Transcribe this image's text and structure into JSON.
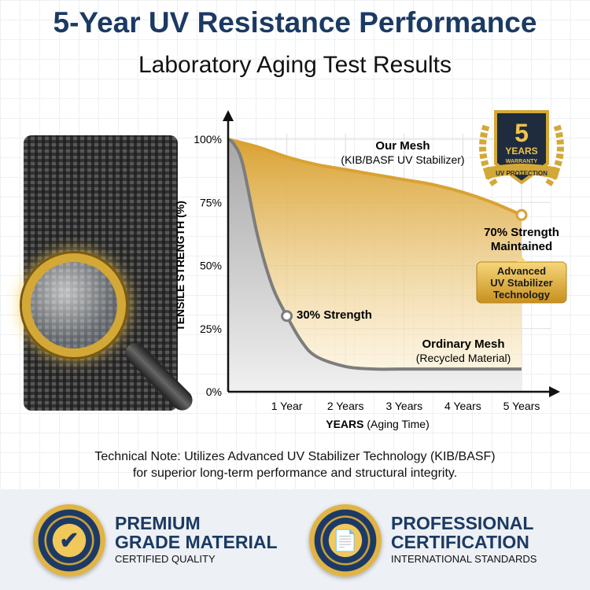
{
  "header": {
    "title": "5-Year UV Resistance Performance",
    "subtitle": "Laboratory Aging Test Results"
  },
  "warranty_badge": {
    "number": "5",
    "line1": "YEARS",
    "line2": "WARRANTY",
    "ribbon": "UV PROTECTION"
  },
  "chart_data": {
    "type": "line",
    "ylabel": "TENSILE STRENGTH (%)",
    "xlabel_bold": "YEARS",
    "xlabel_rest": "(Aging Time)",
    "x_ticks": [
      "1 Year",
      "2 Years",
      "3 Years",
      "4 Years",
      "5 Years"
    ],
    "y_ticks": [
      "0%",
      "25%",
      "50%",
      "75%",
      "100%"
    ],
    "xlim": [
      0,
      5.6
    ],
    "ylim": [
      0,
      100
    ],
    "grid": true,
    "series": [
      {
        "name": "Our Mesh",
        "sublabel": "(KIB/BASF UV Stabilizer)",
        "color": "#d9a232",
        "x": [
          0,
          0.5,
          1,
          1.5,
          2,
          2.5,
          3,
          3.5,
          4,
          4.5,
          5
        ],
        "y": [
          100,
          97,
          93,
          90,
          88,
          86,
          84,
          82,
          79,
          75,
          70
        ]
      },
      {
        "name": "Ordinary Mesh",
        "sublabel": "(Recycled Material)",
        "color": "#7d7d7d",
        "x": [
          0,
          0.1,
          0.25,
          0.5,
          0.75,
          1,
          1.25,
          1.5,
          2,
          2.5,
          3,
          4,
          5
        ],
        "y": [
          100,
          98,
          90,
          62,
          42,
          30,
          20,
          14,
          10,
          9,
          9,
          9,
          9
        ]
      }
    ],
    "annotations": {
      "our": "70% Strength",
      "our2": "Maintained",
      "ordinary": "30% Strength",
      "callout": [
        "Advanced",
        "UV Stabilizer",
        "Technology"
      ]
    }
  },
  "note": {
    "line1": "Technical Note: Utilizes Advanced UV Stabilizer Technology (KIB/BASF)",
    "line2": "for superior long-term performance and structural integrity."
  },
  "footer": [
    {
      "seal_top": "PREMIUM GRADE MATERIAL",
      "seal_bottom": "CERTIFIED QUALITY",
      "icon": "checkmark-icon",
      "title1": "PREMIUM",
      "title2": "GRADE MATERIAL",
      "subtitle": "CERTIFIED QUALITY"
    },
    {
      "seal_top": "PROFESSIONAL CERTIFICATION",
      "seal_bottom": "INTERNATIONAL STANDARDS",
      "icon": "document-gear-icon",
      "title1": "PROFESSIONAL",
      "title2": "CERTIFICATION",
      "subtitle": "INTERNATIONAL STANDARDS"
    }
  ]
}
